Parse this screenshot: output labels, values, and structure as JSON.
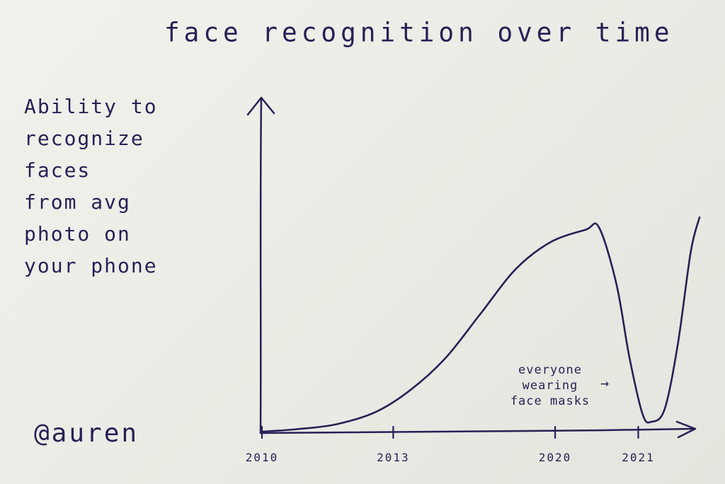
{
  "chart_data": {
    "type": "line",
    "title": "face recognition over time",
    "ylabel_lines": [
      "Ability to",
      "recognize",
      "faces",
      "from avg",
      "photo on",
      "your phone"
    ],
    "xlabel": "",
    "x_ticks": [
      "2010",
      "2013",
      "2020",
      "2021"
    ],
    "x_tick_positions": [
      0,
      0.3,
      0.67,
      0.86
    ],
    "series": [
      {
        "x": [
          0.0,
          0.08,
          0.17,
          0.26,
          0.34,
          0.42,
          0.5,
          0.58,
          0.66,
          0.74,
          0.77,
          0.81,
          0.84,
          0.87,
          0.89,
          0.92,
          0.95,
          0.98,
          1.0
        ],
        "y": [
          0.0,
          0.01,
          0.03,
          0.08,
          0.17,
          0.3,
          0.48,
          0.66,
          0.77,
          0.82,
          0.83,
          0.6,
          0.3,
          0.07,
          0.04,
          0.09,
          0.35,
          0.73,
          0.87
        ]
      }
    ],
    "annotations": [
      {
        "lines": [
          "everyone",
          "wearing",
          "face masks"
        ],
        "arrow": "→"
      }
    ],
    "grid": false
  },
  "signature": "@auren",
  "colors": {
    "ink": "#2a1f55",
    "paper": "#eceee7"
  }
}
